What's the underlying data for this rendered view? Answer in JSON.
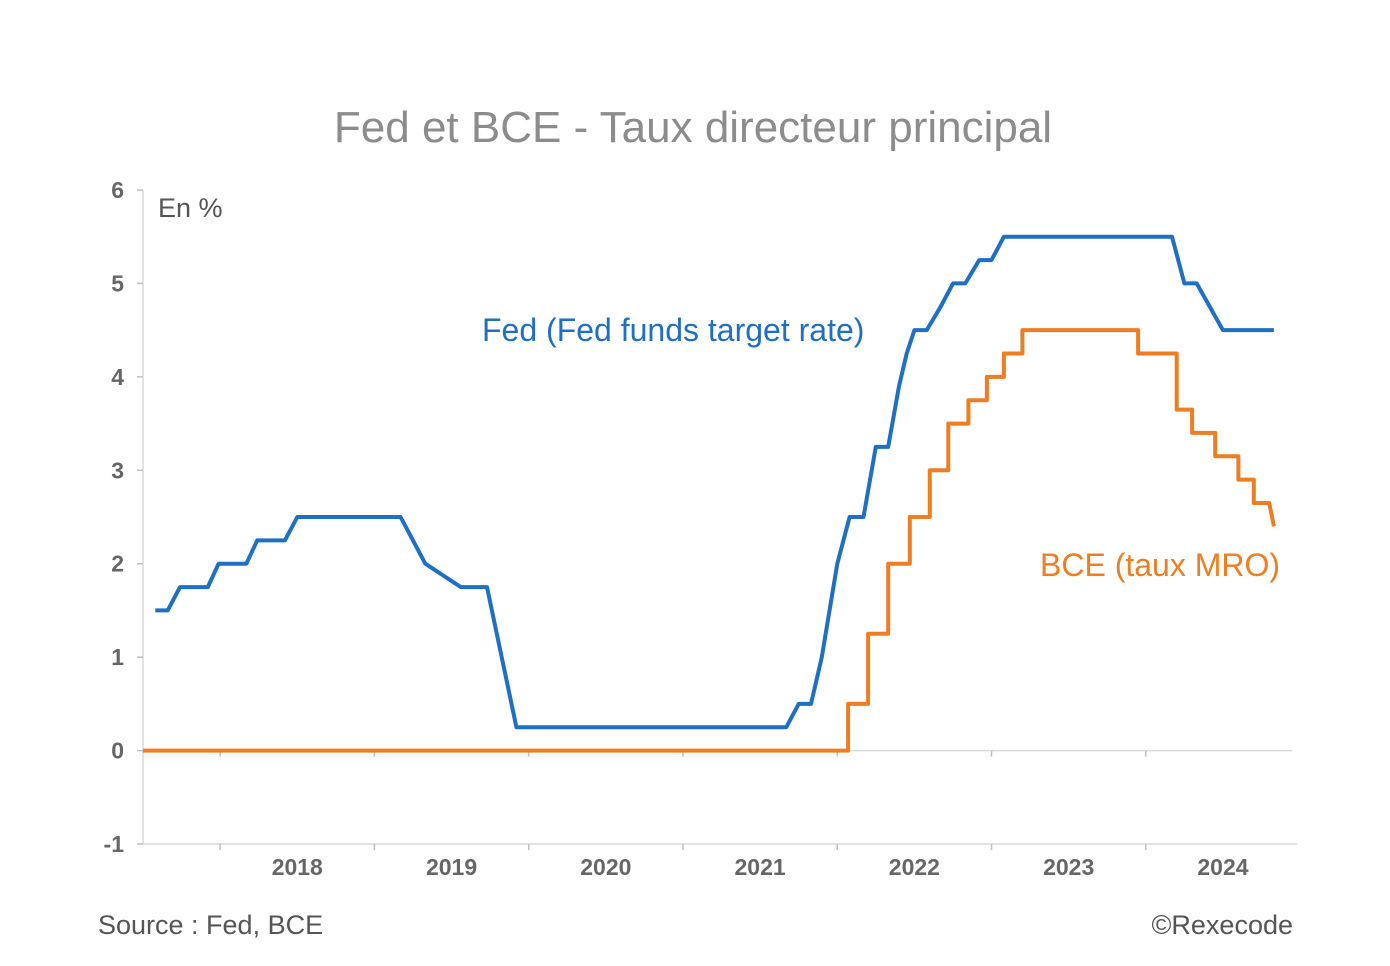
{
  "footer": {
    "source": "Source : Fed, BCE",
    "copyright": "©Rexecode"
  },
  "chart_data": {
    "type": "line",
    "title": "Fed et BCE - Taux directeur principal",
    "y_unit_label": "En %",
    "xlabel": "",
    "ylabel": "",
    "ylim": [
      -1,
      6
    ],
    "yticks": [
      -1,
      0,
      1,
      2,
      3,
      4,
      5,
      6
    ],
    "xlim": [
      2017.5,
      2024.98
    ],
    "xtick_labels": [
      "2018",
      "2019",
      "2020",
      "2021",
      "2022",
      "2023",
      "2024"
    ],
    "grid": false,
    "legend": "inline labels",
    "series": [
      {
        "name": "Fed (Fed funds target rate)",
        "color": "#1f6fc4",
        "x": [
          2017.58,
          2017.66,
          2017.74,
          2017.92,
          2017.99,
          2018.17,
          2018.24,
          2018.42,
          2018.5,
          2018.67,
          2019.08,
          2019.17,
          2019.25,
          2019.33,
          2019.56,
          2019.67,
          2019.73,
          2019.92,
          2020.25,
          2020.5,
          2020.75,
          2021.0,
          2021.5,
          2021.67,
          2021.75,
          2021.83,
          2021.9,
          2022.0,
          2022.08,
          2022.17,
          2022.25,
          2022.33,
          2022.4,
          2022.45,
          2022.5,
          2022.58,
          2022.67,
          2022.75,
          2022.83,
          2022.92,
          2023.0,
          2023.08,
          2023.2,
          2023.5,
          2023.75,
          2024.0,
          2024.17,
          2024.25,
          2024.33,
          2024.5,
          2024.58,
          2024.75,
          2024.83
        ],
        "y": [
          1.5,
          1.5,
          1.75,
          1.75,
          2.0,
          2.0,
          2.25,
          2.25,
          2.5,
          2.5,
          2.5,
          2.5,
          2.25,
          2.0,
          1.75,
          1.75,
          1.75,
          0.25,
          0.25,
          0.25,
          0.25,
          0.25,
          0.25,
          0.25,
          0.5,
          0.5,
          1.0,
          2.0,
          2.5,
          2.5,
          3.25,
          3.25,
          3.9,
          4.25,
          4.5,
          4.5,
          4.75,
          5.0,
          5.0,
          5.25,
          5.25,
          5.5,
          5.5,
          5.5,
          5.5,
          5.5,
          5.5,
          5.0,
          5.0,
          4.5,
          4.5,
          4.5,
          4.5
        ]
      },
      {
        "name": "BCE (taux MRO)",
        "color": "#ef7d22",
        "x": [
          2017.5,
          2018.0,
          2019.0,
          2020.0,
          2021.0,
          2022.07,
          2022.07,
          2022.2,
          2022.2,
          2022.33,
          2022.33,
          2022.47,
          2022.47,
          2022.6,
          2022.6,
          2022.72,
          2022.72,
          2022.85,
          2022.85,
          2022.97,
          2022.97,
          2023.08,
          2023.08,
          2023.2,
          2023.2,
          2023.33,
          2023.33,
          2023.5,
          2023.75,
          2023.95,
          2023.95,
          2024.2,
          2024.2,
          2024.3,
          2024.3,
          2024.45,
          2024.45,
          2024.6,
          2024.6,
          2024.7,
          2024.7,
          2024.8,
          2024.8,
          2024.83
        ],
        "y": [
          0,
          0,
          0,
          0,
          0,
          0,
          0.5,
          0.5,
          1.25,
          1.25,
          2.0,
          2.0,
          2.5,
          2.5,
          3.0,
          3.0,
          3.5,
          3.5,
          3.75,
          3.75,
          4.0,
          4.0,
          4.25,
          4.25,
          4.5,
          4.5,
          4.5,
          4.5,
          4.5,
          4.5,
          4.25,
          4.25,
          3.65,
          3.65,
          3.4,
          3.4,
          3.15,
          3.15,
          2.9,
          2.9,
          2.65,
          2.65,
          2.65,
          2.4
        ]
      }
    ]
  }
}
